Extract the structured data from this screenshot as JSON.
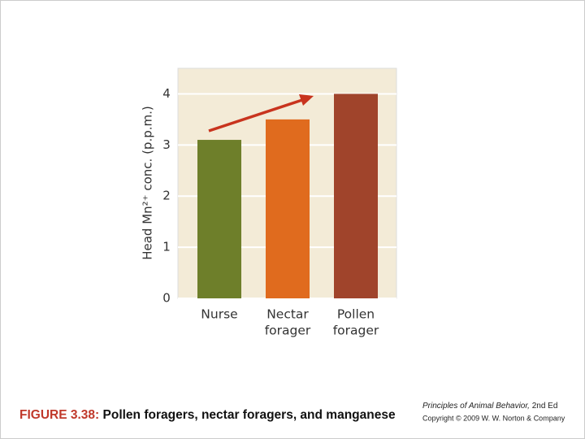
{
  "chart_data": {
    "type": "bar",
    "y_label": "Head Mn²⁺ conc. (p.p.m.)",
    "categories": [
      [
        "Nurse"
      ],
      [
        "Nectar",
        "forager"
      ],
      [
        "Pollen",
        "forager"
      ]
    ],
    "values": [
      3.1,
      3.5,
      4.0
    ],
    "colors": [
      "#6e7f2a",
      "#e06b1e",
      "#a0442b"
    ],
    "ylim": [
      0,
      4.5
    ],
    "yticks": [
      0,
      1,
      2,
      3,
      4
    ],
    "grid": true
  },
  "figure": {
    "label": "FIGURE 3.38:",
    "title": "Pollen foragers, nectar foragers, and manganese"
  },
  "credit": {
    "book": "Principles of Animal Behavior,",
    "edition": "2nd Ed",
    "copyright": "Copyright © 2009 W. W. Norton & Company"
  }
}
